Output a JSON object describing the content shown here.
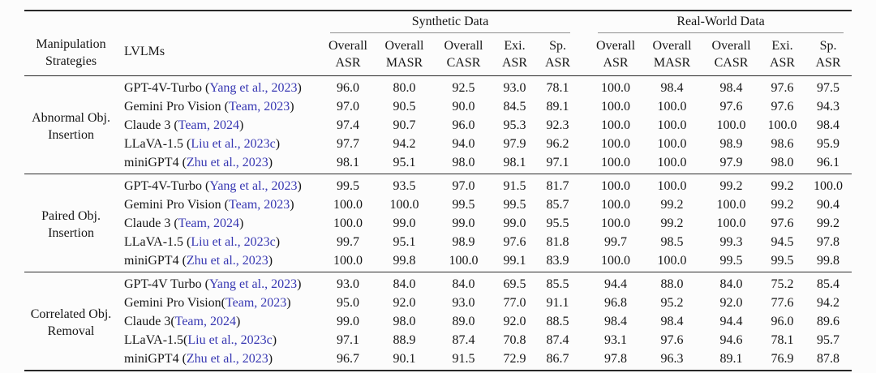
{
  "page": {
    "background": "#fcfcfc"
  },
  "colors": {
    "citation_blue": "#3737b2",
    "rule_dark": "#282828",
    "rule_gray": "#8f8f8f",
    "text": "#161616"
  },
  "table": {
    "corner": {
      "strategies_line1": "Manipulation",
      "strategies_line2": "Strategies",
      "lvlms_label": "LVLMs"
    },
    "data_groups": [
      {
        "label": "Synthetic Data"
      },
      {
        "label": "Real-World Data"
      }
    ],
    "metrics": [
      [
        "Overall",
        "ASR"
      ],
      [
        "Overall",
        "MASR"
      ],
      [
        "Overall",
        "CASR"
      ],
      [
        "Exi.",
        "ASR"
      ],
      [
        "Sp.",
        "ASR"
      ]
    ],
    "groups": [
      {
        "strategy_lines": [
          "Abnormal Obj.",
          "Insertion"
        ],
        "rows": [
          {
            "name": "GPT-4V-Turbo ",
            "cite": "Yang et al., 2023",
            "syn": [
              "96.0",
              "80.0",
              "92.5",
              "93.0",
              "78.1"
            ],
            "real": [
              "100.0",
              "98.4",
              "98.4",
              "97.6",
              "97.5"
            ]
          },
          {
            "name": "Gemini Pro Vision ",
            "cite": "Team, 2023",
            "syn": [
              "97.0",
              "90.5",
              "90.0",
              "84.5",
              "89.1"
            ],
            "real": [
              "100.0",
              "100.0",
              "97.6",
              "97.6",
              "94.3"
            ]
          },
          {
            "name": "Claude 3 ",
            "cite": "Team, 2024",
            "syn": [
              "97.4",
              "90.7",
              "96.0",
              "95.3",
              "92.3"
            ],
            "real": [
              "100.0",
              "100.0",
              "100.0",
              "100.0",
              "98.4"
            ]
          },
          {
            "name": "LLaVA-1.5 ",
            "cite": "Liu et al., 2023c",
            "syn": [
              "97.7",
              "94.2",
              "94.0",
              "97.9",
              "96.2"
            ],
            "real": [
              "100.0",
              "100.0",
              "98.9",
              "98.6",
              "95.9"
            ]
          },
          {
            "name": "miniGPT4 ",
            "cite": "Zhu et al., 2023",
            "syn": [
              "98.1",
              "95.1",
              "98.0",
              "98.1",
              "97.1"
            ],
            "real": [
              "100.0",
              "100.0",
              "97.9",
              "98.0",
              "96.1"
            ]
          }
        ]
      },
      {
        "strategy_lines": [
          "Paired Obj.",
          "Insertion"
        ],
        "rows": [
          {
            "name": "GPT-4V-Turbo ",
            "cite": "Yang et al., 2023",
            "syn": [
              "99.5",
              "93.5",
              "97.0",
              "91.5",
              "81.7"
            ],
            "real": [
              "100.0",
              "100.0",
              "99.2",
              "99.2",
              "100.0"
            ]
          },
          {
            "name": "Gemini Pro Vision ",
            "cite": "Team, 2023",
            "syn": [
              "100.0",
              "100.0",
              "99.5",
              "99.5",
              "85.7"
            ],
            "real": [
              "100.0",
              "99.2",
              "100.0",
              "99.2",
              "90.4"
            ]
          },
          {
            "name": "Claude 3 ",
            "cite": "Team, 2024",
            "syn": [
              "100.0",
              "99.0",
              "99.0",
              "99.0",
              "95.5"
            ],
            "real": [
              "100.0",
              "99.2",
              "100.0",
              "97.6",
              "99.2"
            ]
          },
          {
            "name": "LLaVA-1.5 ",
            "cite": "Liu et al., 2023c",
            "syn": [
              "99.7",
              "95.1",
              "98.9",
              "97.6",
              "81.8"
            ],
            "real": [
              "99.7",
              "98.5",
              "99.3",
              "94.5",
              "97.8"
            ]
          },
          {
            "name": "miniGPT4 ",
            "cite": "Zhu et al., 2023",
            "syn": [
              "100.0",
              "99.8",
              "100.0",
              "99.1",
              "83.9"
            ],
            "real": [
              "100.0",
              "100.0",
              "99.5",
              "99.5",
              "99.8"
            ]
          }
        ]
      },
      {
        "strategy_lines": [
          "Correlated Obj.",
          "Removal"
        ],
        "rows": [
          {
            "name": "GPT-4V Turbo ",
            "cite": "Yang et al., 2023",
            "syn": [
              "93.0",
              "84.0",
              "84.0",
              "69.5",
              "85.5"
            ],
            "real": [
              "94.4",
              "88.0",
              "84.0",
              "75.2",
              "85.4"
            ]
          },
          {
            "name": "Gemini Pro Vision",
            "cite": "Team, 2023",
            "syn": [
              "95.0",
              "92.0",
              "93.0",
              "77.0",
              "91.1"
            ],
            "real": [
              "96.8",
              "95.2",
              "92.0",
              "77.6",
              "94.2"
            ]
          },
          {
            "name": "Claude 3",
            "cite": "Team, 2024",
            "syn": [
              "99.0",
              "98.0",
              "89.0",
              "92.0",
              "88.5"
            ],
            "real": [
              "98.4",
              "98.4",
              "94.4",
              "96.0",
              "89.6"
            ]
          },
          {
            "name": "LLaVA-1.5",
            "cite": "Liu et al., 2023c",
            "syn": [
              "97.1",
              "88.9",
              "87.4",
              "70.8",
              "87.4"
            ],
            "real": [
              "93.1",
              "97.6",
              "94.6",
              "78.1",
              "95.7"
            ]
          },
          {
            "name": "miniGPT4 ",
            "cite": "Zhu et al., 2023",
            "syn": [
              "96.7",
              "90.1",
              "91.5",
              "72.9",
              "86.7"
            ],
            "real": [
              "97.8",
              "96.3",
              "89.1",
              "76.9",
              "87.8"
            ]
          }
        ]
      }
    ]
  }
}
